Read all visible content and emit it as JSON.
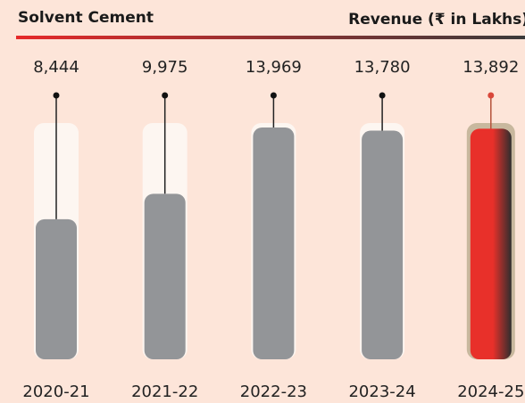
{
  "chart_data": {
    "type": "bar",
    "title": "Solvent Cement",
    "subtitle": "Revenue (₹ in Lakhs)",
    "categories": [
      "2020-21",
      "2021-22",
      "2022-23",
      "2023-24",
      "2024-25"
    ],
    "values": [
      8444,
      9975,
      13969,
      13780,
      13892
    ],
    "value_labels": [
      "8,444",
      "9,975",
      "13,969",
      "13,780",
      "13,892"
    ],
    "colors": [
      "#939598",
      "#939598",
      "#939598",
      "#939598",
      [
        "#e8302a",
        "#2e2e2e"
      ]
    ]
  }
}
